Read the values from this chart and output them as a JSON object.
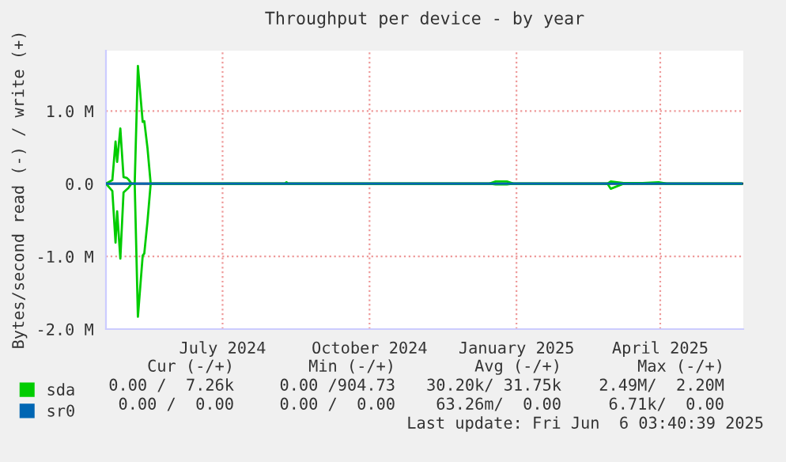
{
  "chart_data": {
    "type": "line",
    "title": "Throughput per device - by year",
    "ylabel": "Bytes/second read (-) / write (+)",
    "xlim": [
      "2024-05-04",
      "2025-06-07"
    ],
    "ylim": [
      -2000000,
      1830000
    ],
    "xticks": [
      {
        "value": "2024-07-16",
        "label": "July 2024"
      },
      {
        "value": "2024-10-16",
        "label": "October 2024"
      },
      {
        "value": "2025-01-16",
        "label": "January 2025"
      },
      {
        "value": "2025-04-16",
        "label": "April 2025"
      }
    ],
    "yticks": [
      {
        "value": -2000000,
        "label": "-2.0 M"
      },
      {
        "value": -1000000,
        "label": "-1.0 M"
      },
      {
        "value": 0,
        "label": "0.0"
      },
      {
        "value": 1000000,
        "label": "1.0 M"
      }
    ],
    "grid": true,
    "legend": "bottom",
    "ref_lines": [
      {
        "axis": "y",
        "value": 0,
        "color": "#000000"
      }
    ],
    "series": [
      {
        "name": "sda",
        "color": "#00cc00",
        "x": [
          "2024-05-04",
          "2024-05-08",
          "2024-05-10",
          "2024-05-11",
          "2024-05-13",
          "2024-05-15",
          "2024-05-17",
          "2024-05-18",
          "2024-05-20",
          "2024-05-22",
          "2024-05-24",
          "2024-05-27",
          "2024-05-28",
          "2024-05-30",
          "2024-06-01",
          "2024-08-24",
          "2024-08-25",
          "2024-08-26",
          "2024-12-30",
          "2025-01-03",
          "2025-01-10",
          "2025-01-14",
          "2025-03-14",
          "2025-03-16",
          "2025-03-24",
          "2025-04-05",
          "2025-04-15",
          "2025-04-20",
          "2025-06-06"
        ],
        "values": [
          0,
          50000,
          580000,
          300000,
          760000,
          90000,
          80000,
          60000,
          0,
          0,
          1620000,
          850000,
          860000,
          490000,
          0,
          0,
          20000,
          0,
          0,
          30000,
          30000,
          0,
          0,
          30000,
          10000,
          10000,
          20000,
          0,
          0
        ]
      },
      {
        "color": "#00cc00",
        "x": [
          "2024-05-04",
          "2024-05-08",
          "2024-05-10",
          "2024-05-11",
          "2024-05-13",
          "2024-05-15",
          "2024-05-17",
          "2024-05-18",
          "2024-05-20",
          "2024-05-22",
          "2024-05-24",
          "2024-05-27",
          "2024-05-28",
          "2024-05-30",
          "2024-06-01",
          "2024-08-24",
          "2024-08-25",
          "2024-08-26",
          "2024-12-30",
          "2025-01-03",
          "2025-01-10",
          "2025-01-14",
          "2025-03-14",
          "2025-03-16",
          "2025-03-24",
          "2025-04-05",
          "2025-04-15",
          "2025-04-20",
          "2025-06-06"
        ],
        "values": [
          0,
          -100000,
          -810000,
          -380000,
          -1030000,
          -120000,
          -80000,
          -60000,
          0,
          0,
          -1830000,
          -990000,
          -960000,
          -520000,
          0,
          0,
          0,
          0,
          0,
          -10000,
          -10000,
          0,
          0,
          -70000,
          0,
          0,
          0,
          0,
          0
        ]
      },
      {
        "name": "sr0",
        "color": "#0066b3",
        "x": [
          "2024-05-04",
          "2025-06-06"
        ],
        "values": [
          0,
          0
        ]
      }
    ],
    "annotations": [
      "Cur (-/+)",
      "Min (-/+)",
      "Avg (-/+)",
      "Max (-/+)",
      "0.00 /  7.26k",
      "0.00 /904.73",
      "30.20k/ 31.75k",
      "2.49M/  2.20M",
      "0.00 /  0.00",
      "0.00 /  0.00",
      "63.26m/  0.00",
      "6.71k/  0.00",
      "Last update: Fri Jun  6 03:40:39 2025"
    ]
  }
}
